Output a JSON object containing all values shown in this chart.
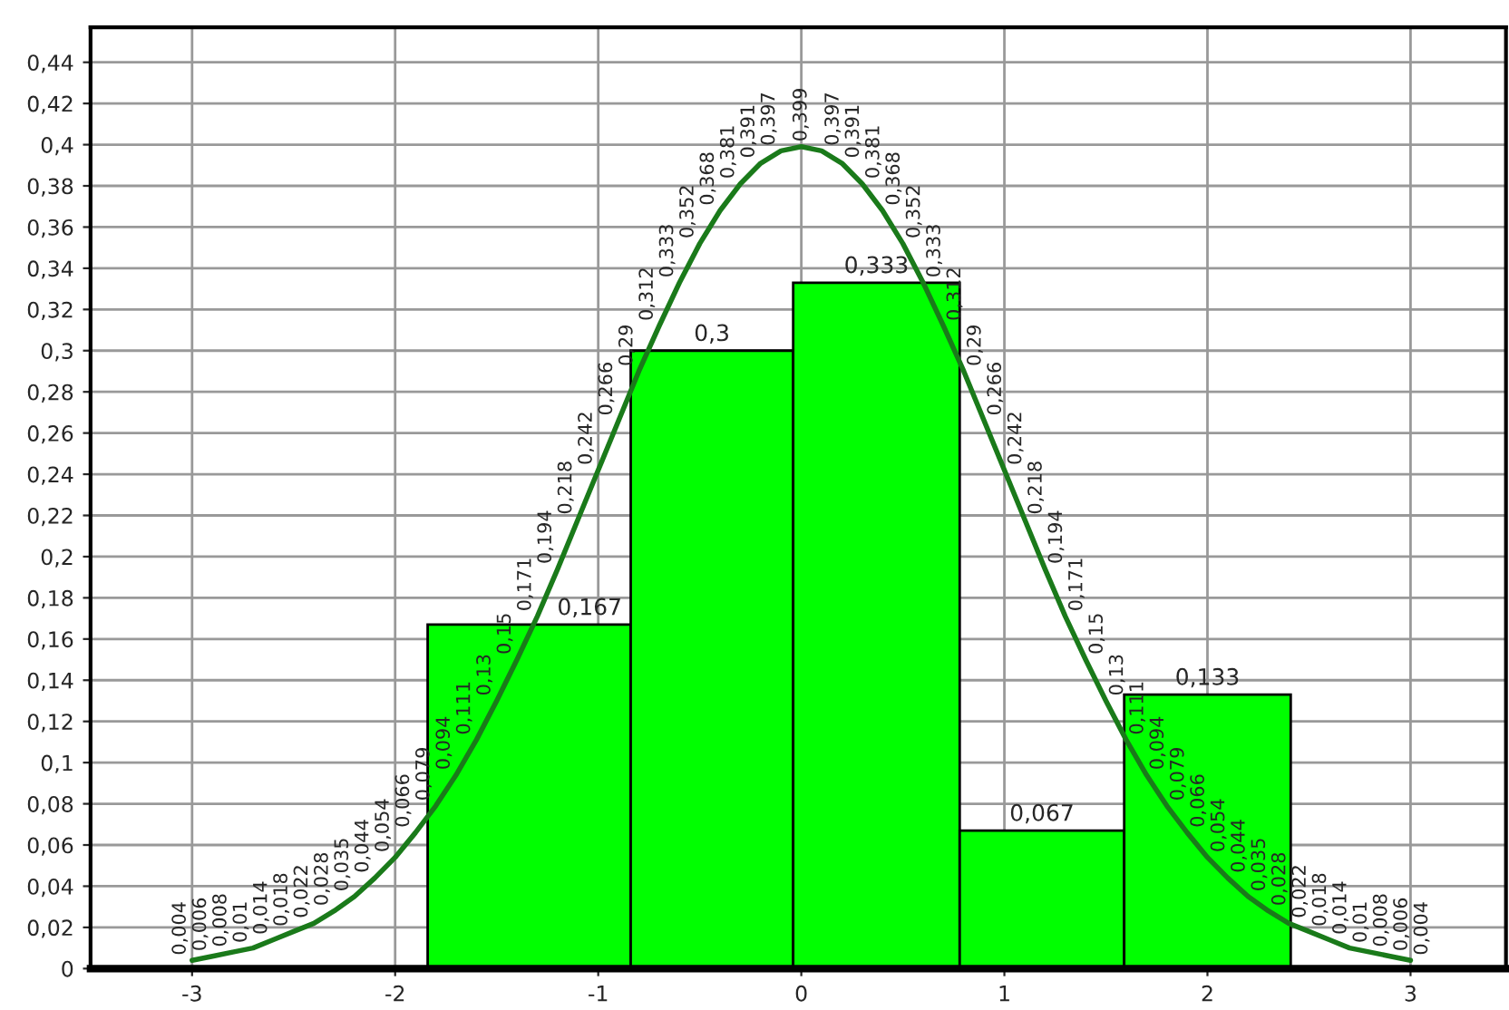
{
  "chart_data": {
    "type": "histogram",
    "series": [
      {
        "type": "histogram",
        "bins": [
          -1.84,
          -0.84,
          -0.04,
          0.78,
          1.59,
          2.41
        ],
        "values": [
          0.167,
          0.3,
          0.333,
          0.067,
          0.133
        ],
        "color": "#00ff00",
        "value_labels": [
          "0,167",
          "0,3",
          "0,333",
          "0,067",
          "0,133"
        ]
      },
      {
        "type": "line",
        "color": "#1a7a1a",
        "x": [
          -3.0,
          -2.9,
          -2.8,
          -2.7,
          -2.6,
          -2.5,
          -2.4,
          -2.3,
          -2.2,
          -2.1,
          -2.0,
          -1.9,
          -1.8,
          -1.7,
          -1.6,
          -1.5,
          -1.4,
          -1.3,
          -1.2,
          -1.1,
          -1.0,
          -0.9,
          -0.8,
          -0.7,
          -0.6,
          -0.5,
          -0.4,
          -0.3,
          -0.2,
          -0.1,
          0.0,
          0.1,
          0.2,
          0.3,
          0.4,
          0.5,
          0.6,
          0.7,
          0.8,
          0.9,
          1.0,
          1.1,
          1.2,
          1.3,
          1.4,
          1.5,
          1.6,
          1.7,
          1.8,
          1.9,
          2.0,
          2.1,
          2.2,
          2.3,
          2.4,
          2.5,
          2.6,
          2.7,
          2.8,
          2.9,
          3.0
        ],
        "values": [
          0.004,
          0.006,
          0.008,
          0.01,
          0.014,
          0.018,
          0.022,
          0.028,
          0.035,
          0.044,
          0.054,
          0.066,
          0.079,
          0.094,
          0.111,
          0.13,
          0.15,
          0.171,
          0.194,
          0.218,
          0.242,
          0.266,
          0.29,
          0.312,
          0.333,
          0.352,
          0.368,
          0.381,
          0.391,
          0.397,
          0.399,
          0.397,
          0.391,
          0.381,
          0.368,
          0.352,
          0.333,
          0.312,
          0.29,
          0.266,
          0.242,
          0.218,
          0.194,
          0.171,
          0.15,
          0.13,
          0.111,
          0.094,
          0.079,
          0.066,
          0.054,
          0.044,
          0.035,
          0.028,
          0.022,
          0.018,
          0.014,
          0.01,
          0.008,
          0.006,
          0.004
        ],
        "value_labels": [
          "0,004",
          "0,006",
          "0,008",
          "0,01",
          "0,014",
          "0,018",
          "0,022",
          "0,028",
          "0,035",
          "0,044",
          "0,054",
          "0,066",
          "0,079",
          "0,094",
          "0,111",
          "0,13",
          "0,15",
          "0,171",
          "0,194",
          "0,218",
          "0,242",
          "0,266",
          "0,29",
          "0,312",
          "0,333",
          "0,352",
          "0,368",
          "0,381",
          "0,391",
          "0,397",
          "0,399",
          "0,397",
          "0,391",
          "0,381",
          "0,368",
          "0,352",
          "0,333",
          "0,312",
          "0,29",
          "0,266",
          "0,242",
          "0,218",
          "0,194",
          "0,171",
          "0,15",
          "0,13",
          "0,111",
          "0,094",
          "0,079",
          "0,066",
          "0,054",
          "0,044",
          "0,035",
          "0,028",
          "0,022",
          "0,018",
          "0,014",
          "0,01",
          "0,008",
          "0,006",
          "0,004"
        ]
      }
    ],
    "xlim": [
      -3.5,
      3.47
    ],
    "ylim": [
      0,
      0.457
    ],
    "xticks": [
      -3,
      -2,
      -1,
      0,
      1,
      2,
      3
    ],
    "yticks": [
      0,
      {
        "value": 0.02,
        "label": "0,02"
      },
      {
        "value": 0.04,
        "label": "0,04"
      },
      {
        "value": 0.06,
        "label": "0,06"
      },
      {
        "value": 0.08,
        "label": "0,08"
      },
      {
        "value": 0.1,
        "label": "0,1"
      },
      {
        "value": 0.12,
        "label": "0,12"
      },
      {
        "value": 0.14,
        "label": "0,14"
      },
      {
        "value": 0.16,
        "label": "0,16"
      },
      {
        "value": 0.18,
        "label": "0,18"
      },
      {
        "value": 0.2,
        "label": "0,2"
      },
      {
        "value": 0.22,
        "label": "0,22"
      },
      {
        "value": 0.24,
        "label": "0,24"
      },
      {
        "value": 0.26,
        "label": "0,26"
      },
      {
        "value": 0.28,
        "label": "0,28"
      },
      {
        "value": 0.3,
        "label": "0,3"
      },
      {
        "value": 0.32,
        "label": "0,32"
      },
      {
        "value": 0.34,
        "label": "0,34"
      },
      {
        "value": 0.36,
        "label": "0,36"
      },
      {
        "value": 0.38,
        "label": "0,38"
      },
      {
        "value": 0.4,
        "label": "0,4"
      },
      {
        "value": 0.42,
        "label": "0,42"
      },
      {
        "value": 0.44,
        "label": "0,44"
      }
    ],
    "grid": true,
    "marker": "none",
    "line_style": "solid"
  }
}
